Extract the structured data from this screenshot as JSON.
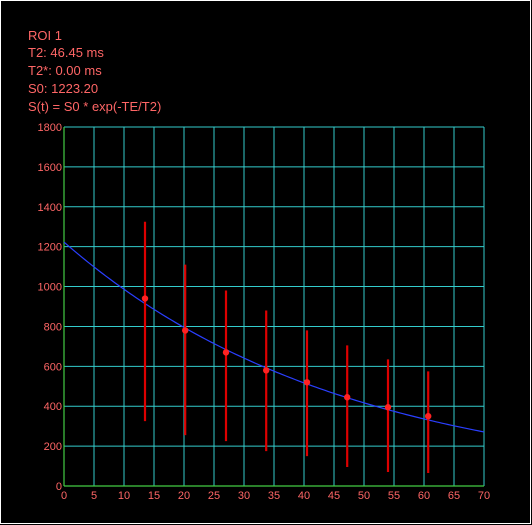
{
  "info": {
    "roi_label": "ROI 1",
    "t2_line": "T2: 46.45 ms",
    "t2star_line": "T2*: 0.00 ms",
    "s0_line": "S0: 1223.20",
    "formula_line": "S(t) = S0 * exp(-TE/T2)"
  },
  "colors": {
    "background": "#000000",
    "frame": "#ffffff",
    "grid": "#33cccc",
    "axes": "#44cc44",
    "text": "#ff6666",
    "tick_text": "#ff6666",
    "fit_curve": "#2a3fff",
    "points": "#ff2222",
    "error_bars": "#dd0000"
  },
  "chart_data": {
    "type": "scatter",
    "title": "",
    "xlabel": "",
    "ylabel": "",
    "xlim": [
      0,
      70
    ],
    "ylim": [
      0,
      1800
    ],
    "grid": true,
    "legend": "none",
    "x_ticks": [
      0,
      5,
      10,
      15,
      20,
      25,
      30,
      35,
      40,
      45,
      50,
      55,
      60,
      65,
      70
    ],
    "y_ticks": [
      0,
      200,
      400,
      600,
      800,
      1000,
      1200,
      1400,
      1600,
      1800
    ],
    "series": [
      {
        "points": [
          {
            "x": 13.5,
            "y": 940,
            "ylow": 325,
            "yhigh": 1325
          },
          {
            "x": 20.2,
            "y": 780,
            "ylow": 255,
            "yhigh": 1110
          },
          {
            "x": 27.0,
            "y": 670,
            "ylow": 225,
            "yhigh": 980
          },
          {
            "x": 33.7,
            "y": 580,
            "ylow": 175,
            "yhigh": 880
          },
          {
            "x": 40.5,
            "y": 520,
            "ylow": 150,
            "yhigh": 780
          },
          {
            "x": 47.2,
            "y": 445,
            "ylow": 95,
            "yhigh": 705
          },
          {
            "x": 54.0,
            "y": 395,
            "ylow": 70,
            "yhigh": 635
          },
          {
            "x": 60.7,
            "y": 350,
            "ylow": 65,
            "yhigh": 575
          }
        ]
      }
    ],
    "fit": {
      "model": "S(t) = S0 * exp(-TE/T2)",
      "S0": 1223.2,
      "T2": 46.45,
      "x_range": [
        0,
        70
      ]
    }
  }
}
